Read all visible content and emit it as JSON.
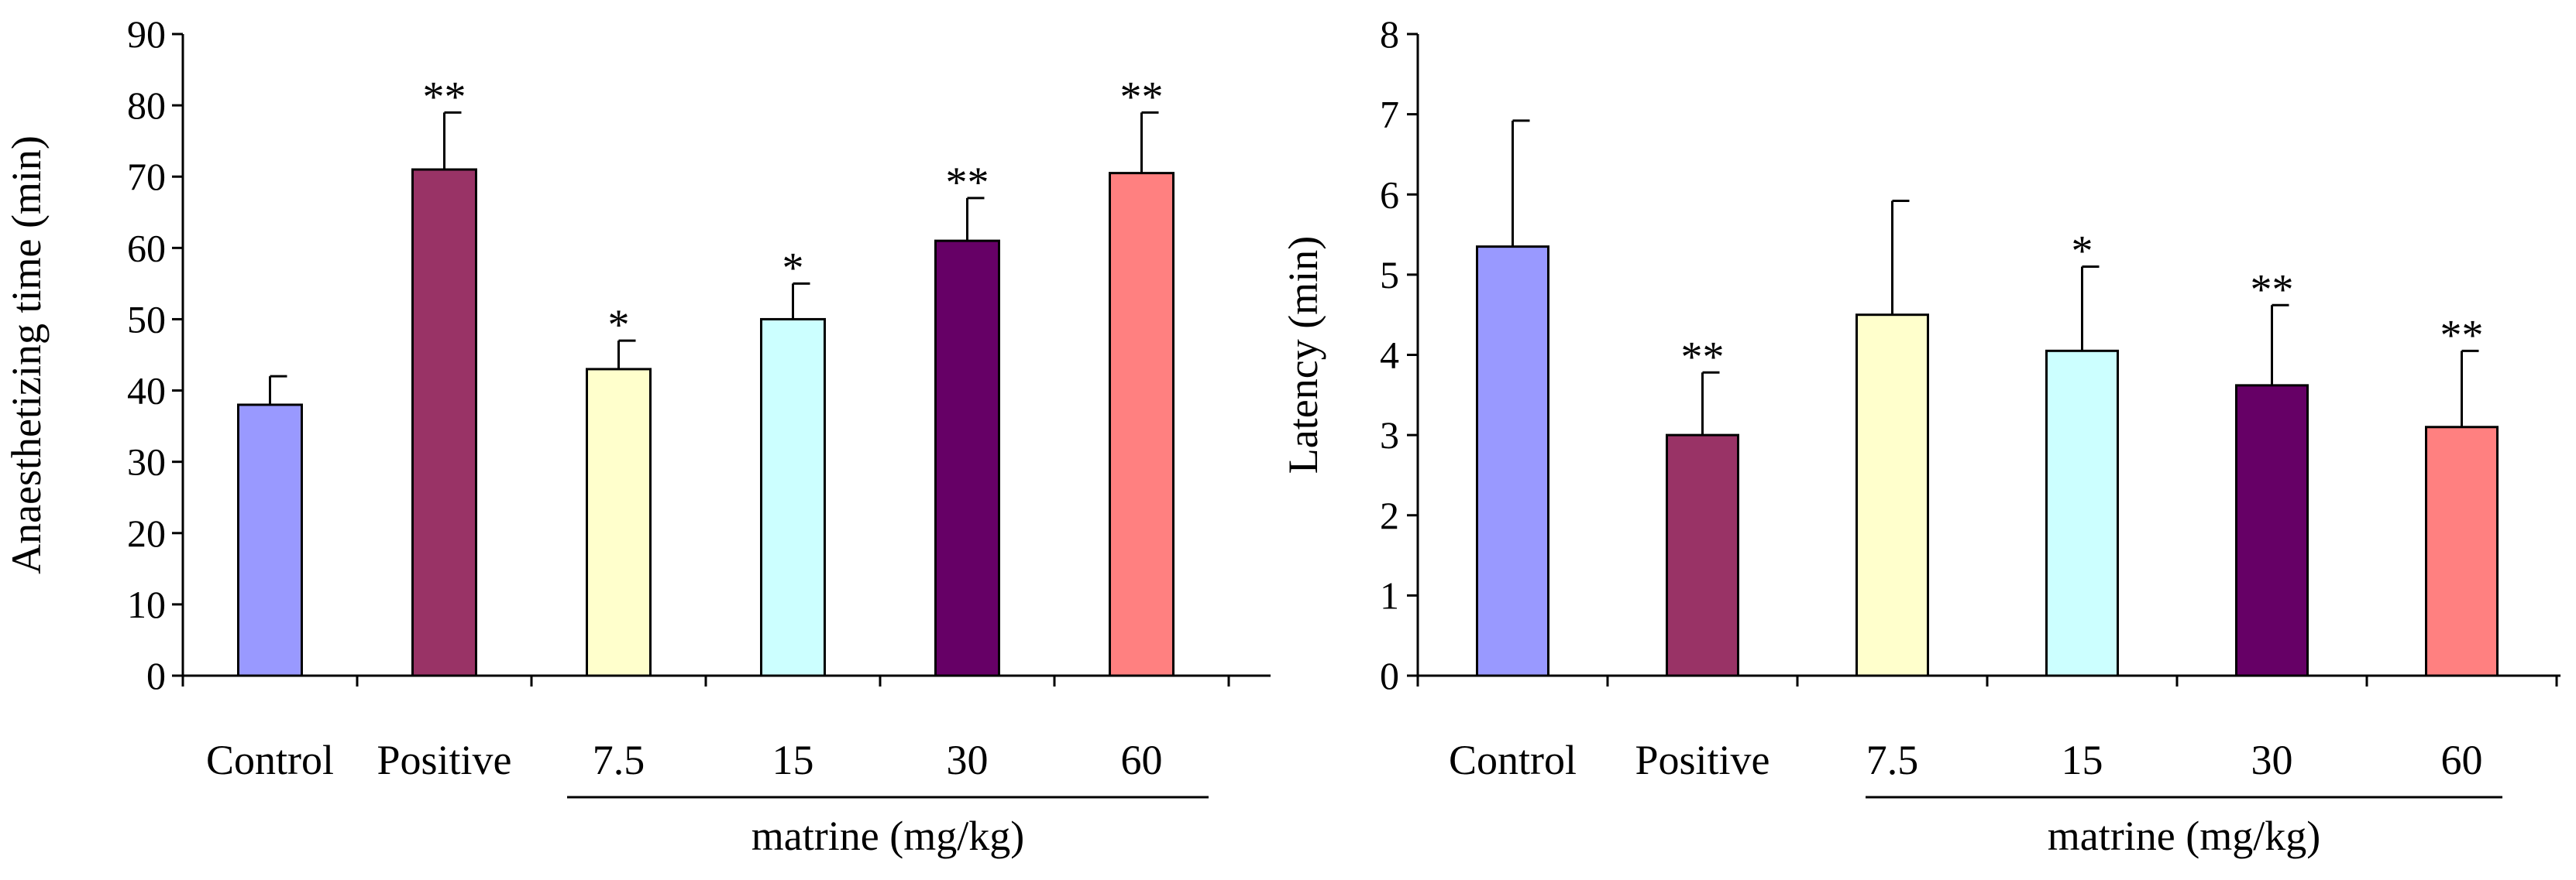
{
  "chart_data": [
    {
      "type": "bar",
      "title": "",
      "ylabel": "Anaesthetizing time (min)",
      "xlabel": "matrine (mg/kg)",
      "group_label": "matrine (mg/kg)",
      "ylim": [
        0,
        90
      ],
      "yticks": [
        "0",
        "10",
        "20",
        "30",
        "40",
        "50",
        "60",
        "70",
        "80",
        "90"
      ],
      "categories": [
        "Control",
        "Positive",
        "7.5",
        "15",
        "30",
        "60"
      ],
      "values": [
        38,
        71,
        43,
        50,
        61,
        70.5
      ],
      "errors": [
        4,
        8,
        4,
        5,
        6,
        8.5
      ],
      "significance": [
        "",
        "**",
        "*",
        "*",
        "**",
        "**"
      ],
      "colors": [
        "#9999FF",
        "#993366",
        "#FFFFCC",
        "#CCFFFF",
        "#660066",
        "#FF8080"
      ],
      "grid": false,
      "legend": "none"
    },
    {
      "type": "bar",
      "title": "",
      "ylabel": "Latency (min)",
      "xlabel": "matrine (mg/kg)",
      "group_label": "matrine (mg/kg)",
      "ylim": [
        0,
        8
      ],
      "yticks": [
        "0",
        "1",
        "2",
        "3",
        "4",
        "5",
        "6",
        "7",
        "8"
      ],
      "categories": [
        "Control",
        "Positive",
        "7.5",
        "15",
        "30",
        "60"
      ],
      "values": [
        5.35,
        3.0,
        4.5,
        4.05,
        3.62,
        3.1
      ],
      "errors": [
        1.57,
        0.78,
        1.42,
        1.05,
        1.0,
        0.95
      ],
      "significance": [
        "",
        "**",
        "",
        "*",
        "**",
        "**"
      ],
      "colors": [
        "#9999FF",
        "#993366",
        "#FFFFCC",
        "#CCFFFF",
        "#660066",
        "#FF8080"
      ],
      "grid": false,
      "legend": "none"
    }
  ]
}
